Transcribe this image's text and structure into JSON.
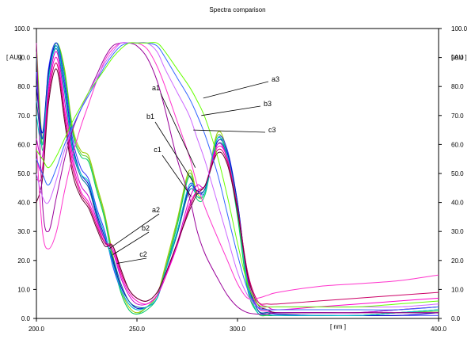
{
  "chart_data": {
    "type": "line",
    "title": "Spectra comparison",
    "xlabel": "[ nm ]",
    "ylabel": "[ AU ]",
    "ylabel_right": "[ AU ]",
    "xlim": [
      200,
      400
    ],
    "ylim": [
      0,
      100
    ],
    "x_ticks": [
      "200.0",
      "250.0",
      "300.0",
      "400.0"
    ],
    "y_ticks": [
      "0.0",
      "10.0",
      "20.0",
      "30.0",
      "40.0",
      "50.0",
      "60.0",
      "70.0",
      "80.0",
      "90.0",
      "100.0"
    ],
    "grid": false,
    "legend": "none",
    "annotations": [
      {
        "label": "a1",
        "x": 279,
        "y": 52
      },
      {
        "label": "b1",
        "x": 278,
        "y": 47
      },
      {
        "label": "c1",
        "x": 277,
        "y": 42
      },
      {
        "label": "a2",
        "x": 236,
        "y": 24
      },
      {
        "label": "b2",
        "x": 238,
        "y": 22
      },
      {
        "label": "c2",
        "x": 240,
        "y": 19
      },
      {
        "label": "a3",
        "x": 283,
        "y": 76
      },
      {
        "label": "b3",
        "x": 282,
        "y": 70
      },
      {
        "label": "c3",
        "x": 278,
        "y": 65
      }
    ],
    "series": [
      {
        "color": "#99cc00",
        "x": [
          200,
          203,
          206,
          210,
          214,
          218,
          222,
          226,
          230,
          234,
          238,
          242,
          246,
          250,
          255,
          260,
          264,
          270,
          276,
          280,
          284,
          290,
          295,
          300,
          305,
          310,
          315,
          320,
          340,
          360,
          380,
          400
        ],
        "y": [
          95,
          62,
          85,
          95,
          86,
          66,
          58,
          56,
          46,
          36,
          22,
          10,
          4,
          2,
          4,
          8,
          18,
          34,
          51,
          43,
          44,
          64,
          57,
          38,
          12,
          2,
          1,
          1,
          1,
          1,
          2,
          3
        ]
      },
      {
        "color": "#66cc33",
        "x": [
          200,
          203,
          206,
          210,
          214,
          218,
          222,
          226,
          230,
          234,
          238,
          242,
          246,
          250,
          255,
          260,
          264,
          270,
          276,
          280,
          284,
          290,
          295,
          300,
          305,
          310,
          315,
          320,
          340,
          360,
          380,
          400
        ],
        "y": [
          92,
          60,
          84,
          95,
          85,
          65,
          57,
          55,
          45,
          35,
          21,
          9,
          3,
          1.5,
          4,
          8,
          17,
          33,
          50,
          42,
          44,
          63,
          56,
          36,
          11,
          2,
          1,
          1,
          1,
          1,
          2,
          2.5
        ]
      },
      {
        "color": "#00cc66",
        "x": [
          200,
          203,
          206,
          210,
          214,
          218,
          222,
          226,
          230,
          234,
          238,
          242,
          246,
          250,
          255,
          260,
          264,
          270,
          276,
          280,
          284,
          290,
          295,
          300,
          305,
          310,
          315,
          320,
          340,
          360,
          380,
          400
        ],
        "y": [
          90,
          58,
          83,
          95,
          84,
          64,
          56,
          54,
          44,
          34,
          20,
          9,
          3,
          1.5,
          3,
          7,
          16,
          32,
          49,
          41,
          43,
          62,
          55,
          35,
          10,
          2,
          1,
          1,
          1,
          1,
          2,
          3
        ]
      },
      {
        "color": "#3333ff",
        "x": [
          200,
          203,
          206,
          210,
          214,
          218,
          222,
          226,
          230,
          234,
          238,
          242,
          246,
          250,
          255,
          260,
          264,
          270,
          276,
          280,
          284,
          290,
          295,
          300,
          305,
          310,
          315,
          320,
          340,
          360,
          380,
          400
        ],
        "y": [
          85,
          62,
          86,
          95,
          82,
          62,
          52,
          48,
          38,
          30,
          18,
          10,
          5,
          3,
          4,
          7,
          16,
          30,
          46,
          44,
          44,
          62,
          58,
          40,
          14,
          3,
          1.5,
          1,
          1,
          1,
          1,
          1
        ]
      },
      {
        "color": "#0000cc",
        "x": [
          200,
          203,
          206,
          210,
          214,
          218,
          222,
          226,
          230,
          234,
          238,
          242,
          246,
          250,
          255,
          260,
          264,
          270,
          276,
          280,
          284,
          290,
          295,
          300,
          305,
          310,
          315,
          320,
          340,
          360,
          380,
          400
        ],
        "y": [
          80,
          64,
          85,
          94,
          80,
          60,
          50,
          46,
          36,
          28,
          20,
          11,
          6,
          3.5,
          4,
          7,
          16,
          30,
          45,
          44,
          45,
          61,
          57,
          40,
          14,
          3,
          2,
          1.5,
          1,
          1,
          1,
          2
        ]
      },
      {
        "color": "#006699",
        "x": [
          200,
          203,
          206,
          210,
          214,
          218,
          222,
          226,
          230,
          234,
          238,
          242,
          246,
          250,
          255,
          260,
          264,
          270,
          276,
          280,
          284,
          290,
          295,
          300,
          305,
          310,
          315,
          320,
          340,
          360,
          380,
          400
        ],
        "y": [
          75,
          62,
          83,
          93,
          78,
          58,
          49,
          45,
          35,
          27,
          21,
          12,
          6,
          4,
          4,
          7,
          16,
          29,
          44,
          43,
          45,
          60,
          56,
          39,
          13,
          3,
          2,
          2,
          2,
          2,
          3,
          4
        ]
      },
      {
        "color": "#00cccc",
        "x": [
          200,
          203,
          206,
          210,
          214,
          218,
          222,
          226,
          230,
          234,
          238,
          242,
          246,
          250,
          255,
          260,
          264,
          270,
          276,
          280,
          284,
          290,
          295,
          300,
          305,
          310,
          315,
          320,
          340,
          360,
          380,
          400
        ],
        "y": [
          70,
          60,
          82,
          94,
          79,
          59,
          50,
          47,
          37,
          29,
          19,
          10,
          5,
          3,
          4,
          7,
          16,
          30,
          46,
          42,
          44,
          62,
          56,
          38,
          12,
          2,
          1.5,
          1,
          1,
          1,
          2,
          3
        ]
      },
      {
        "color": "#cc00cc",
        "x": [
          200,
          203,
          206,
          210,
          214,
          218,
          222,
          226,
          230,
          234,
          238,
          242,
          246,
          250,
          255,
          260,
          264,
          270,
          276,
          280,
          284,
          290,
          295,
          300,
          305,
          310,
          315,
          320,
          340,
          360,
          380,
          400
        ],
        "y": [
          62,
          56,
          80,
          92,
          75,
          56,
          46,
          42,
          34,
          27,
          23,
          14,
          8,
          5,
          5,
          8,
          14,
          26,
          41,
          46,
          46,
          60,
          55,
          38,
          14,
          4,
          2.5,
          2,
          2,
          2,
          3,
          4
        ]
      },
      {
        "color": "#ff00cc",
        "x": [
          200,
          203,
          206,
          210,
          214,
          218,
          222,
          226,
          230,
          234,
          238,
          242,
          246,
          250,
          255,
          260,
          264,
          270,
          276,
          280,
          284,
          290,
          295,
          300,
          305,
          310,
          315,
          320,
          340,
          360,
          380,
          400
        ],
        "y": [
          55,
          52,
          78,
          90,
          72,
          54,
          44,
          40,
          33,
          26,
          24,
          15,
          9,
          6,
          5,
          8,
          14,
          25,
          39,
          44,
          46,
          59,
          55,
          38,
          16,
          6,
          4,
          3,
          4,
          5,
          6,
          7
        ]
      },
      {
        "color": "#cc0066",
        "x": [
          200,
          203,
          206,
          210,
          214,
          218,
          222,
          226,
          230,
          234,
          238,
          242,
          246,
          250,
          255,
          260,
          264,
          270,
          276,
          280,
          284,
          290,
          295,
          300,
          305,
          310,
          315,
          320,
          340,
          360,
          380,
          400
        ],
        "y": [
          48,
          50,
          76,
          88,
          70,
          52,
          43,
          39,
          32,
          26,
          25,
          16,
          10,
          7,
          6,
          9,
          15,
          26,
          38,
          44,
          46,
          58,
          54,
          38,
          16,
          6,
          5,
          5,
          6,
          7,
          8,
          9
        ]
      },
      {
        "color": "#660033",
        "x": [
          200,
          203,
          206,
          210,
          214,
          218,
          222,
          226,
          230,
          234,
          238,
          242,
          246,
          250,
          255,
          260,
          264,
          270,
          276,
          280,
          284,
          290,
          295,
          300,
          305,
          310,
          315,
          320,
          340,
          360,
          380,
          400
        ],
        "y": [
          40,
          48,
          74,
          86,
          68,
          50,
          42,
          38,
          31,
          25,
          25,
          17,
          10,
          7,
          6,
          9,
          15,
          26,
          37,
          43,
          46,
          57,
          53,
          37,
          15,
          5,
          3,
          2,
          2,
          2,
          2,
          2
        ]
      },
      {
        "color": "#990099",
        "x": [
          200,
          203,
          206,
          210,
          214,
          218,
          222,
          226,
          230,
          234,
          238,
          242,
          246,
          250,
          255,
          260,
          264,
          270,
          276,
          280,
          284,
          290,
          295,
          300,
          305,
          310,
          315,
          320,
          340,
          360,
          380,
          400
        ],
        "y": [
          95,
          40,
          30,
          42,
          55,
          65,
          72,
          78,
          84,
          90,
          94,
          95,
          95,
          94,
          90,
          82,
          72,
          55,
          42,
          30,
          22,
          14,
          8,
          4,
          2,
          1.5,
          1.5,
          2,
          2,
          2,
          2,
          2
        ]
      },
      {
        "color": "#ff33cc",
        "x": [
          200,
          203,
          206,
          210,
          214,
          218,
          222,
          226,
          230,
          234,
          238,
          242,
          246,
          250,
          255,
          260,
          264,
          270,
          276,
          280,
          284,
          290,
          295,
          300,
          305,
          310,
          315,
          320,
          340,
          360,
          380,
          400
        ],
        "y": [
          60,
          30,
          24,
          30,
          44,
          56,
          66,
          74,
          82,
          89,
          93,
          95,
          95,
          95,
          93,
          87,
          80,
          68,
          56,
          46,
          38,
          28,
          20,
          12,
          7,
          7,
          8,
          9,
          11,
          12,
          13,
          15
        ]
      },
      {
        "color": "#cc66ff",
        "x": [
          200,
          203,
          206,
          210,
          214,
          218,
          222,
          226,
          230,
          234,
          238,
          242,
          246,
          250,
          255,
          260,
          264,
          270,
          276,
          280,
          284,
          290,
          295,
          300,
          305,
          310,
          315,
          320,
          340,
          360,
          380,
          400
        ],
        "y": [
          50,
          42,
          40,
          48,
          58,
          66,
          72,
          78,
          83,
          88,
          92,
          95,
          95,
          95,
          95,
          92,
          86,
          78,
          70,
          62,
          54,
          40,
          28,
          16,
          8,
          4,
          4,
          4,
          4,
          4,
          4,
          5
        ]
      },
      {
        "color": "#3366ff",
        "x": [
          200,
          203,
          206,
          210,
          214,
          218,
          222,
          226,
          230,
          234,
          238,
          242,
          246,
          250,
          255,
          260,
          264,
          270,
          276,
          280,
          284,
          290,
          295,
          300,
          305,
          310,
          315,
          320,
          340,
          360,
          380,
          400
        ],
        "y": [
          55,
          50,
          46,
          52,
          60,
          66,
          72,
          77,
          82,
          87,
          91,
          94,
          95,
          95,
          95,
          94,
          90,
          83,
          76,
          70,
          63,
          50,
          36,
          22,
          10,
          4,
          3,
          3,
          3,
          3,
          3,
          4
        ]
      },
      {
        "color": "#66ff00",
        "x": [
          200,
          203,
          206,
          210,
          214,
          218,
          222,
          226,
          230,
          234,
          238,
          242,
          246,
          250,
          255,
          260,
          264,
          270,
          276,
          280,
          284,
          290,
          295,
          300,
          305,
          310,
          315,
          320,
          340,
          360,
          380,
          400
        ],
        "y": [
          58,
          55,
          52,
          56,
          62,
          68,
          73,
          78,
          82,
          86,
          90,
          93,
          95,
          95,
          95,
          95,
          92,
          86,
          80,
          75,
          69,
          56,
          42,
          26,
          12,
          5,
          4,
          4,
          4,
          4,
          5,
          6
        ]
      }
    ]
  }
}
